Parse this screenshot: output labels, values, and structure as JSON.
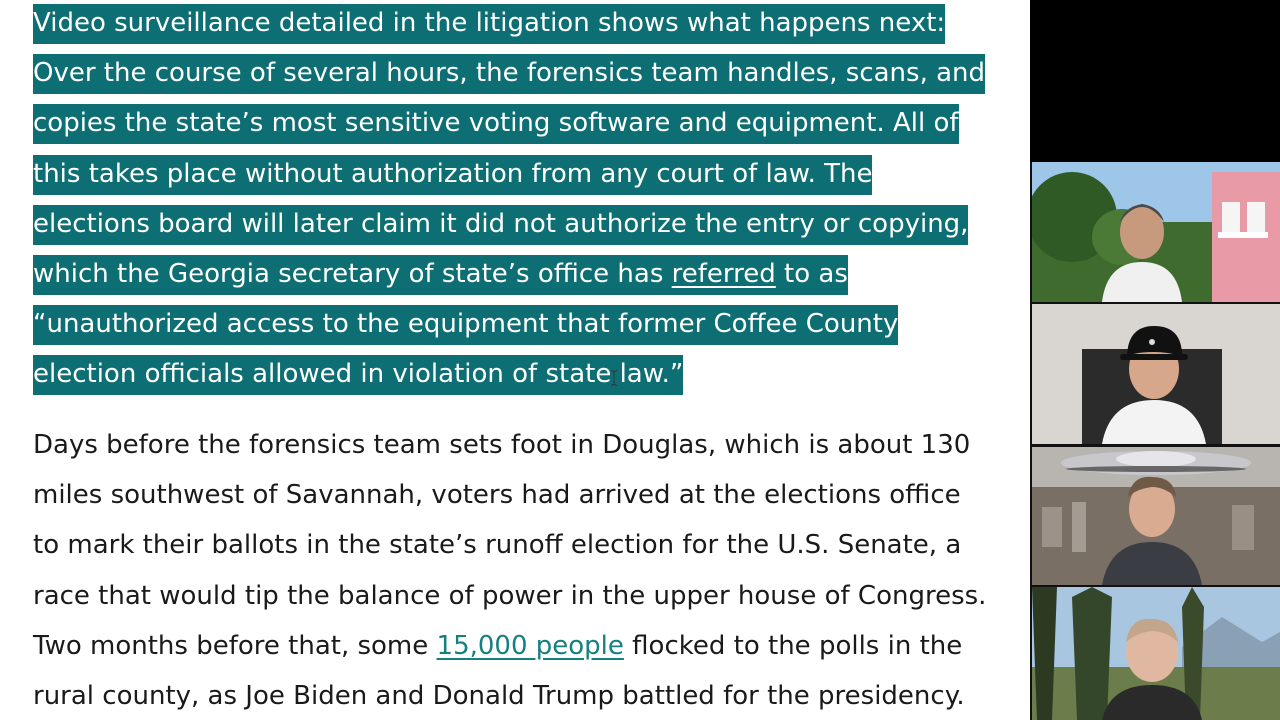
{
  "article": {
    "p1_lines": [
      "Video surveillance detailed in the litigation shows what happens next:",
      "Over the course of several hours, the forensics team handles, scans, and",
      "copies the state’s most sensitive voting software and equipment. All of",
      "this takes place without authorization from any court of law. The",
      "elections board will later claim it did not authorize the entry or copying,",
      "which the Georgia secretary of state’s office has ",
      "referred",
      " to as",
      "“unauthorized access to the equipment that former Coffee County",
      "election officials allowed in violation of state law.”"
    ],
    "p2_lines": [
      "Days before the forensics team sets foot in Douglas, which is about 130",
      "miles southwest of Savannah, voters had arrived at the elections office",
      "to mark their ballots in the state’s runoff election for the U.S. Senate, a",
      "race that would tip the balance of power in the upper house of Congress.",
      "Two months before that, some ",
      "15,000 people",
      " flocked to the polls in the",
      "rural county, as Joe Biden and Donald Trump battled for the presidency."
    ]
  },
  "colors": {
    "highlight": "#0d6f73",
    "link": "#17807f",
    "text": "#1a1a1a"
  },
  "participants": [
    {
      "scene": "garden-house"
    },
    {
      "scene": "cap-office"
    },
    {
      "scene": "city-saucer"
    },
    {
      "scene": "forest-mountains"
    }
  ]
}
